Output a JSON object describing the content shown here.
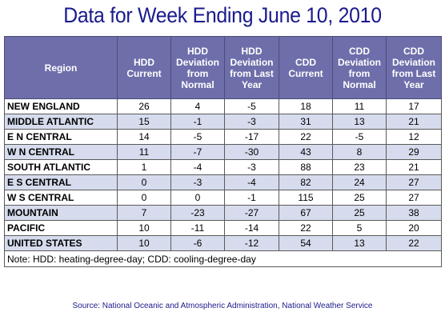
{
  "title": "Data for Week Ending June 10, 2010",
  "table": {
    "headers": [
      "Region",
      "HDD Current",
      "HDD Deviation from Normal",
      "HDD Deviation from Last Year",
      "CDD Current",
      "CDD Deviation from Normal",
      "CDD Deviation from Last Year"
    ],
    "rows": [
      [
        "NEW ENGLAND",
        "26",
        "4",
        "-5",
        "18",
        "11",
        "17"
      ],
      [
        "MIDDLE ATLANTIC",
        "15",
        "-1",
        "-3",
        "31",
        "13",
        "21"
      ],
      [
        "E N CENTRAL",
        "14",
        "-5",
        "-17",
        "22",
        "-5",
        "12"
      ],
      [
        "W N CENTRAL",
        "11",
        "-7",
        "-30",
        "43",
        "8",
        "29"
      ],
      [
        "SOUTH ATLANTIC",
        "1",
        "-4",
        "-3",
        "88",
        "23",
        "21"
      ],
      [
        "E S CENTRAL",
        "0",
        "-3",
        "-4",
        "82",
        "24",
        "27"
      ],
      [
        "W S CENTRAL",
        "0",
        "0",
        "-1",
        "115",
        "25",
        "27"
      ],
      [
        "MOUNTAIN",
        "7",
        "-23",
        "-27",
        "67",
        "25",
        "38"
      ],
      [
        "PACIFIC",
        "10",
        "-11",
        "-14",
        "22",
        "5",
        "20"
      ],
      [
        "UNITED STATES",
        "10",
        "-6",
        "-12",
        "54",
        "13",
        "22"
      ]
    ],
    "note": "Note: HDD: heating-degree-day; CDD: cooling-degree-day"
  },
  "source": "Source:  National Oceanic and Atmospheric Administration, National Weather Service"
}
